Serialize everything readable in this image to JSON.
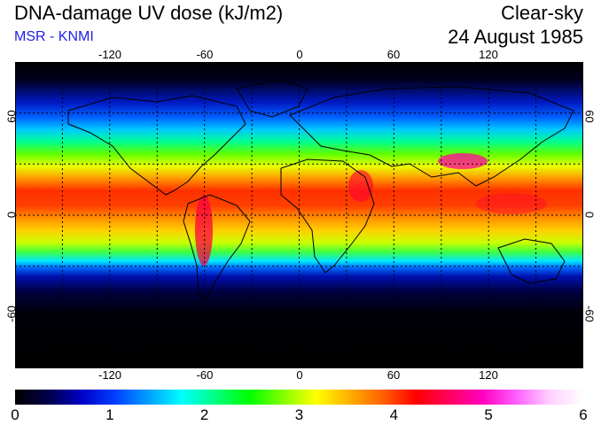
{
  "title": "DNA-damage UV dose (kJ/m2)",
  "source": "MSR - KNMI",
  "condition": "Clear-sky",
  "date": "24 August 1985",
  "map": {
    "projection": "equirectangular",
    "lon_range": [
      -180,
      180
    ],
    "lat_range": [
      -90,
      90
    ],
    "lon_ticks": [
      "-120",
      "-60",
      "0",
      "60",
      "120"
    ],
    "lat_ticks": [
      "60",
      "0",
      "-60"
    ],
    "grid": "dotted, 30 degree spacing",
    "coastlines": true
  },
  "colorbar": {
    "min": 0,
    "max": 6,
    "tick_labels": [
      "0",
      "1",
      "2",
      "3",
      "4",
      "5",
      "6"
    ],
    "colors": [
      "#000000",
      "#00004a",
      "#0000c8",
      "#0040ff",
      "#00a0ff",
      "#00ffff",
      "#00ff80",
      "#00ff00",
      "#80ff00",
      "#ffff00",
      "#ffb000",
      "#ff6000",
      "#ff0000",
      "#ff0060",
      "#ff00c0",
      "#ff60ff",
      "#ffd0ff",
      "#ffffff"
    ]
  }
}
